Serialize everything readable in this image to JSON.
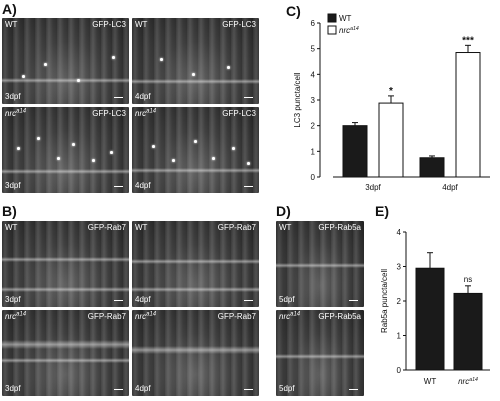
{
  "panel_letters": [
    "A)",
    "B)",
    "C)",
    "D)",
    "E)"
  ],
  "panel_a": {
    "tiles": [
      {
        "genotype": "WT",
        "genotype_sup": "",
        "marker": "GFP-LC3",
        "stage": "3dpf"
      },
      {
        "genotype": "WT",
        "genotype_sup": "",
        "marker": "GFP-LC3",
        "stage": "4dpf"
      },
      {
        "genotype": "nrc",
        "genotype_sup": "a14",
        "marker": "GFP-LC3",
        "stage": "3dpf"
      },
      {
        "genotype": "nrc",
        "genotype_sup": "a14",
        "marker": "GFP-LC3",
        "stage": "4dpf"
      }
    ]
  },
  "panel_b": {
    "tiles": [
      {
        "genotype": "WT",
        "genotype_sup": "",
        "marker": "GFP-Rab7",
        "stage": "3dpf"
      },
      {
        "genotype": "WT",
        "genotype_sup": "",
        "marker": "GFP-Rab7",
        "stage": "4dpf"
      },
      {
        "genotype": "nrc",
        "genotype_sup": "a14",
        "marker": "GFP-Rab7",
        "stage": "3dpf"
      },
      {
        "genotype": "nrc",
        "genotype_sup": "a14",
        "marker": "GFP-Rab7",
        "stage": "4dpf"
      }
    ]
  },
  "panel_d": {
    "tiles": [
      {
        "genotype": "WT",
        "genotype_sup": "",
        "marker": "GFP-Rab5a",
        "stage": "5dpf"
      },
      {
        "genotype": "nrc",
        "genotype_sup": "a14",
        "marker": "GFP-Rab5a",
        "stage": "5dpf"
      }
    ]
  },
  "chart_data": [
    {
      "panel": "C",
      "type": "bar",
      "ylabel": "LC3 puncta/cell",
      "ylim": [
        0,
        6
      ],
      "yticks": [
        "0",
        "1",
        "2",
        "3",
        "4",
        "5",
        "6"
      ],
      "groups": [
        "3dpf",
        "4dpf"
      ],
      "legend": [
        {
          "label": "WT",
          "sup": "",
          "fill": "#1a1a1a"
        },
        {
          "label": "nrc",
          "sup": "a14",
          "fill": "#ffffff"
        }
      ],
      "series": [
        {
          "name": "WT",
          "values": [
            2.0,
            0.75
          ],
          "errors": [
            0.12,
            0.07
          ]
        },
        {
          "name": "nrca14",
          "values": [
            2.88,
            4.85
          ],
          "errors": [
            0.28,
            0.28
          ]
        }
      ],
      "significance": [
        "*",
        "***"
      ]
    },
    {
      "panel": "E",
      "type": "bar",
      "ylabel": "Rab5a puncta/cell",
      "ylim": [
        0,
        4
      ],
      "yticks": [
        "0",
        "1",
        "2",
        "3",
        "4"
      ],
      "categories": [
        {
          "label": "WT",
          "sup": ""
        },
        {
          "label": "nrc",
          "sup": "a14"
        }
      ],
      "values": [
        2.95,
        2.22
      ],
      "errors": [
        0.45,
        0.22
      ],
      "significance": [
        "",
        "ns"
      ],
      "fill": "#1a1a1a"
    }
  ]
}
